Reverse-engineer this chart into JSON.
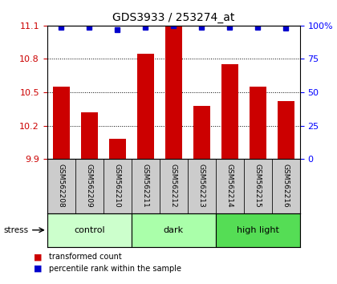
{
  "title": "GDS3933 / 253274_at",
  "samples": [
    "GSM562208",
    "GSM562209",
    "GSM562210",
    "GSM562211",
    "GSM562212",
    "GSM562213",
    "GSM562214",
    "GSM562215",
    "GSM562216"
  ],
  "bar_values": [
    10.55,
    10.32,
    10.08,
    10.85,
    11.09,
    10.38,
    10.75,
    10.55,
    10.42
  ],
  "percentile_values": [
    99,
    99,
    97,
    99,
    100,
    99,
    99,
    99,
    98
  ],
  "bar_color": "#cc0000",
  "dot_color": "#0000cc",
  "ylim_left": [
    9.9,
    11.1
  ],
  "yticks_left": [
    9.9,
    10.2,
    10.5,
    10.8,
    11.1
  ],
  "ylim_right": [
    0,
    100
  ],
  "yticks_right": [
    0,
    25,
    50,
    75,
    100
  ],
  "groups": [
    {
      "label": "control",
      "indices": [
        0,
        1,
        2
      ],
      "color": "#ccffcc"
    },
    {
      "label": "dark",
      "indices": [
        3,
        4,
        5
      ],
      "color": "#aaffaa"
    },
    {
      "label": "high light",
      "indices": [
        6,
        7,
        8
      ],
      "color": "#55dd55"
    }
  ],
  "stress_label": "stress",
  "legend_bar_label": "transformed count",
  "legend_dot_label": "percentile rank within the sample",
  "label_bg_color": "#cccccc",
  "fig_width": 4.2,
  "fig_height": 3.54,
  "dpi": 100
}
